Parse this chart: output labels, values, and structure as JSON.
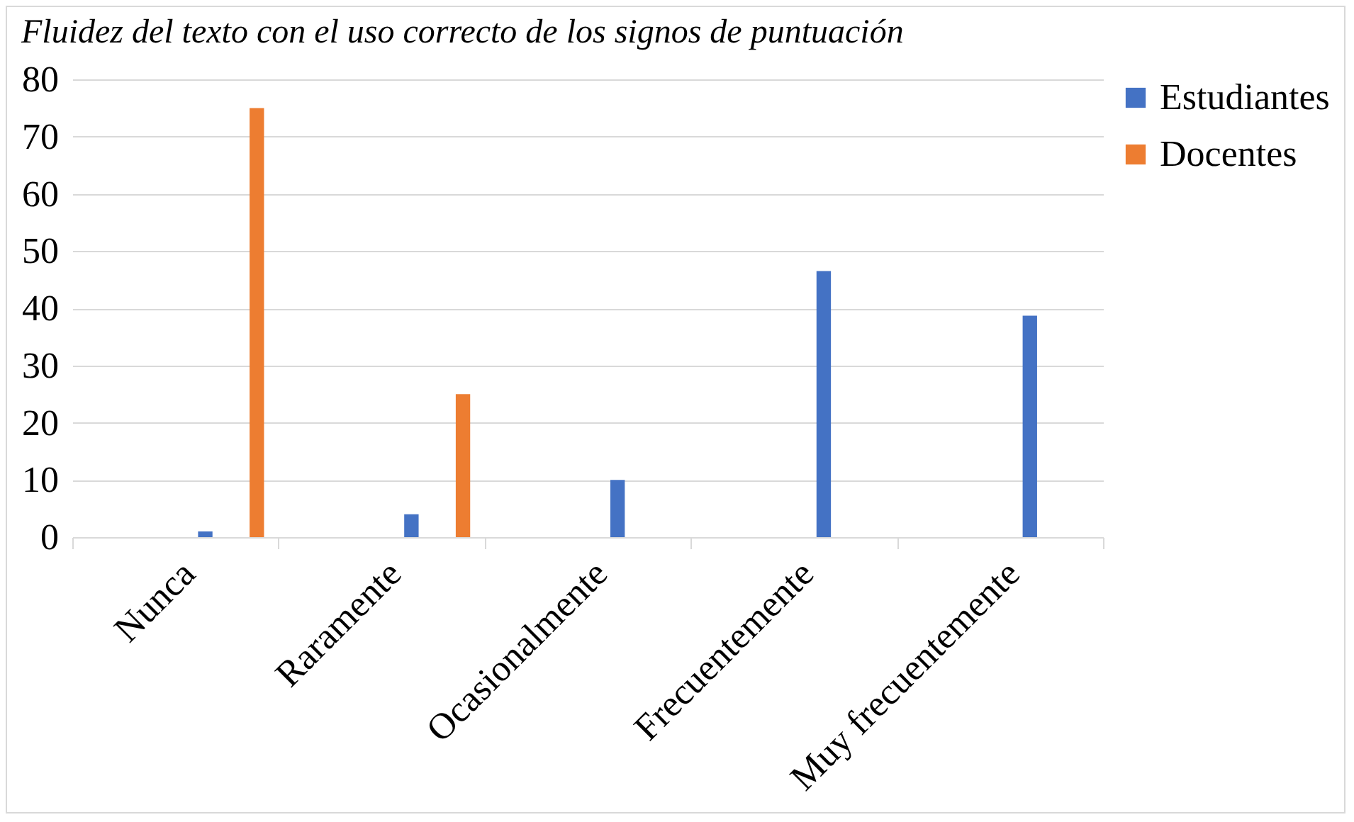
{
  "chart_data": {
    "type": "bar",
    "title": "Fluidez del texto con el uso correcto de los signos de puntuación",
    "categories": [
      "Nunca",
      "Raramente",
      "Ocasionalmente",
      "Frecuentemente",
      "Muy frecuentemente"
    ],
    "series": [
      {
        "name": "Estudiantes",
        "color": "#4472c4",
        "values": [
          1,
          4,
          10,
          46.5,
          38.7
        ]
      },
      {
        "name": "Docentes",
        "color": "#ed7d31",
        "values": [
          75,
          25,
          0,
          0,
          0
        ]
      }
    ],
    "ylim": [
      0,
      80
    ],
    "yticks": [
      0,
      10,
      20,
      30,
      40,
      50,
      60,
      70,
      80
    ],
    "grid": "y",
    "legend": "right"
  }
}
